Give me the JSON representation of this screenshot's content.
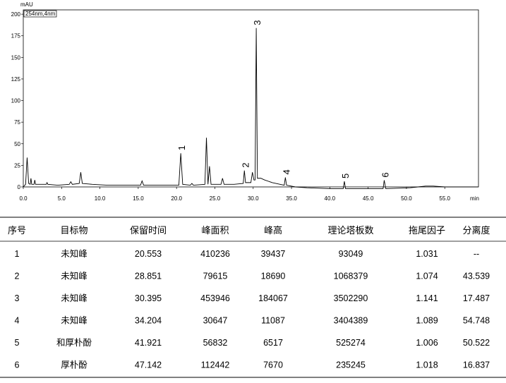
{
  "chart_data": {
    "type": "line",
    "ylabel": "mAU",
    "xlabel": "min",
    "annotation": "254nm,4nm",
    "xlim": [
      0,
      59.4
    ],
    "ylim": [
      0,
      205
    ],
    "xticks": [
      {
        "value": 0,
        "label": "0.0"
      },
      {
        "value": 5,
        "label": "5.0"
      },
      {
        "value": 10,
        "label": "10.0"
      },
      {
        "value": 15,
        "label": "15.0"
      },
      {
        "value": 20,
        "label": "20.0"
      },
      {
        "value": 25,
        "label": "25.0"
      },
      {
        "value": 30,
        "label": "30.0"
      },
      {
        "value": 35,
        "label": "35.0"
      },
      {
        "value": 40,
        "label": "40.0"
      },
      {
        "value": 45,
        "label": "45.0"
      },
      {
        "value": 50,
        "label": "50.0"
      },
      {
        "value": 55,
        "label": "55.0"
      }
    ],
    "yticks": [
      0,
      25,
      50,
      75,
      100,
      125,
      150,
      175,
      200
    ],
    "series": [
      {
        "color": "#000000",
        "x": [
          0,
          0.3,
          0.5,
          0.7,
          0.9,
          1.0,
          1.1,
          1.4,
          1.5,
          1.6,
          2.5,
          3.0,
          3.1,
          3.2,
          4.5,
          6.0,
          6.2,
          6.4,
          7.3,
          7.5,
          7.7,
          9,
          11,
          13,
          15.3,
          15.5,
          15.7,
          18,
          20.3,
          20.55,
          20.8,
          21.8,
          22.0,
          22.2,
          23.7,
          23.9,
          24.1,
          24.3,
          24.5,
          25.8,
          26.0,
          26.2,
          27.5,
          28.7,
          28.85,
          29.0,
          29.7,
          29.9,
          30.1,
          30.25,
          30.4,
          30.55,
          31.0,
          31.5,
          32.5,
          33.5,
          34.05,
          34.2,
          34.35,
          35.5,
          37,
          40,
          41.75,
          41.9,
          42.05,
          44,
          46.95,
          47.1,
          47.3,
          49,
          50.5,
          51.5,
          52.5,
          53.5,
          55,
          57,
          59.4
        ],
        "values": [
          0,
          3,
          34,
          4,
          3,
          10,
          3,
          3,
          8,
          3,
          3,
          3,
          5,
          3,
          2,
          3,
          6,
          3,
          4,
          17,
          4,
          3,
          2,
          2,
          2,
          7,
          2,
          2,
          2,
          39,
          3,
          2,
          4,
          2,
          3,
          57,
          3,
          24,
          3,
          3,
          10,
          3,
          3,
          4,
          19,
          5,
          5,
          17,
          8,
          8,
          184,
          10,
          10,
          8,
          5,
          3,
          2,
          11,
          2,
          0,
          -1,
          -2,
          -2,
          6.5,
          -2,
          -2,
          -2,
          7.7,
          -2,
          -1.5,
          -1,
          0,
          1,
          1,
          0,
          0,
          0
        ]
      }
    ],
    "peak_labels": [
      {
        "text": "1",
        "x": 20.55
      },
      {
        "text": "2",
        "x": 28.85
      },
      {
        "text": "3",
        "x": 30.4
      },
      {
        "text": "4",
        "x": 34.2
      },
      {
        "text": "5",
        "x": 41.9
      },
      {
        "text": "6",
        "x": 47.1
      }
    ]
  },
  "table": {
    "header": [
      "序号",
      "目标物",
      "保留时间",
      "峰面积",
      "峰高",
      "理论塔板数",
      "拖尾因子",
      "分离度"
    ],
    "rows": [
      [
        "1",
        "未知峰",
        "20.553",
        "410236",
        "39437",
        "93049",
        "1.031",
        "--"
      ],
      [
        "2",
        "未知峰",
        "28.851",
        "79615",
        "18690",
        "1068379",
        "1.074",
        "43.539"
      ],
      [
        "3",
        "未知峰",
        "30.395",
        "453946",
        "184067",
        "3502290",
        "1.141",
        "17.487"
      ],
      [
        "4",
        "未知峰",
        "34.204",
        "30647",
        "11087",
        "3404389",
        "1.089",
        "54.748"
      ],
      [
        "5",
        "和厚朴酚",
        "41.921",
        "56832",
        "6517",
        "525274",
        "1.006",
        "50.522"
      ],
      [
        "6",
        "厚朴酚",
        "47.142",
        "112442",
        "7670",
        "235245",
        "1.018",
        "16.837"
      ]
    ]
  }
}
